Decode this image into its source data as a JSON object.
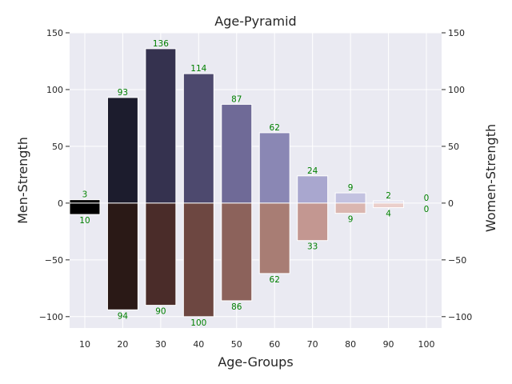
{
  "chart_data": {
    "type": "bar",
    "title": "Age-Pyramid",
    "xlabel": "Age-Groups",
    "ylabel": "Men-Strength",
    "ylabel_right": "Women-Strength",
    "categories": [
      "10",
      "20",
      "30",
      "40",
      "50",
      "60",
      "70",
      "80",
      "90",
      "100"
    ],
    "series": [
      {
        "values": [
          3,
          93,
          136,
          114,
          87,
          62,
          24,
          9,
          2,
          0
        ]
      },
      {
        "values": [
          -10,
          -94,
          -90,
          -100,
          -86,
          -62,
          -33,
          -9,
          -4,
          0
        ]
      }
    ],
    "data_labels_top": [
      "3",
      "93",
      "136",
      "114",
      "87",
      "62",
      "24",
      "9",
      "2",
      "0"
    ],
    "data_labels_bottom": [
      "10",
      "94",
      "90",
      "100",
      "86",
      "62",
      "33",
      "9",
      "4",
      "0"
    ],
    "ylim": [
      -110,
      150
    ],
    "yticks": [
      -100,
      -50,
      0,
      50,
      100,
      150
    ],
    "ytick_labels": [
      "−100",
      "−50",
      "0",
      "50",
      "100",
      "150"
    ],
    "grid": true,
    "colors": {
      "background": "#eaeaf2",
      "grid": "#ffffff",
      "data_label": "#008000",
      "men": [
        "#000000",
        "#1c1c2d",
        "#35324f",
        "#4d496e",
        "#6f6a97",
        "#8a87b4",
        "#a9a7cf",
        "#c3c2e0",
        "#e1e0ef",
        "#f1f1f8"
      ],
      "women": [
        "#000000",
        "#2a1916",
        "#4a2c29",
        "#6d4741",
        "#8c625b",
        "#a87d74",
        "#c39791",
        "#dab6b0",
        "#ebcfcb",
        "#f5e6e4"
      ]
    }
  }
}
